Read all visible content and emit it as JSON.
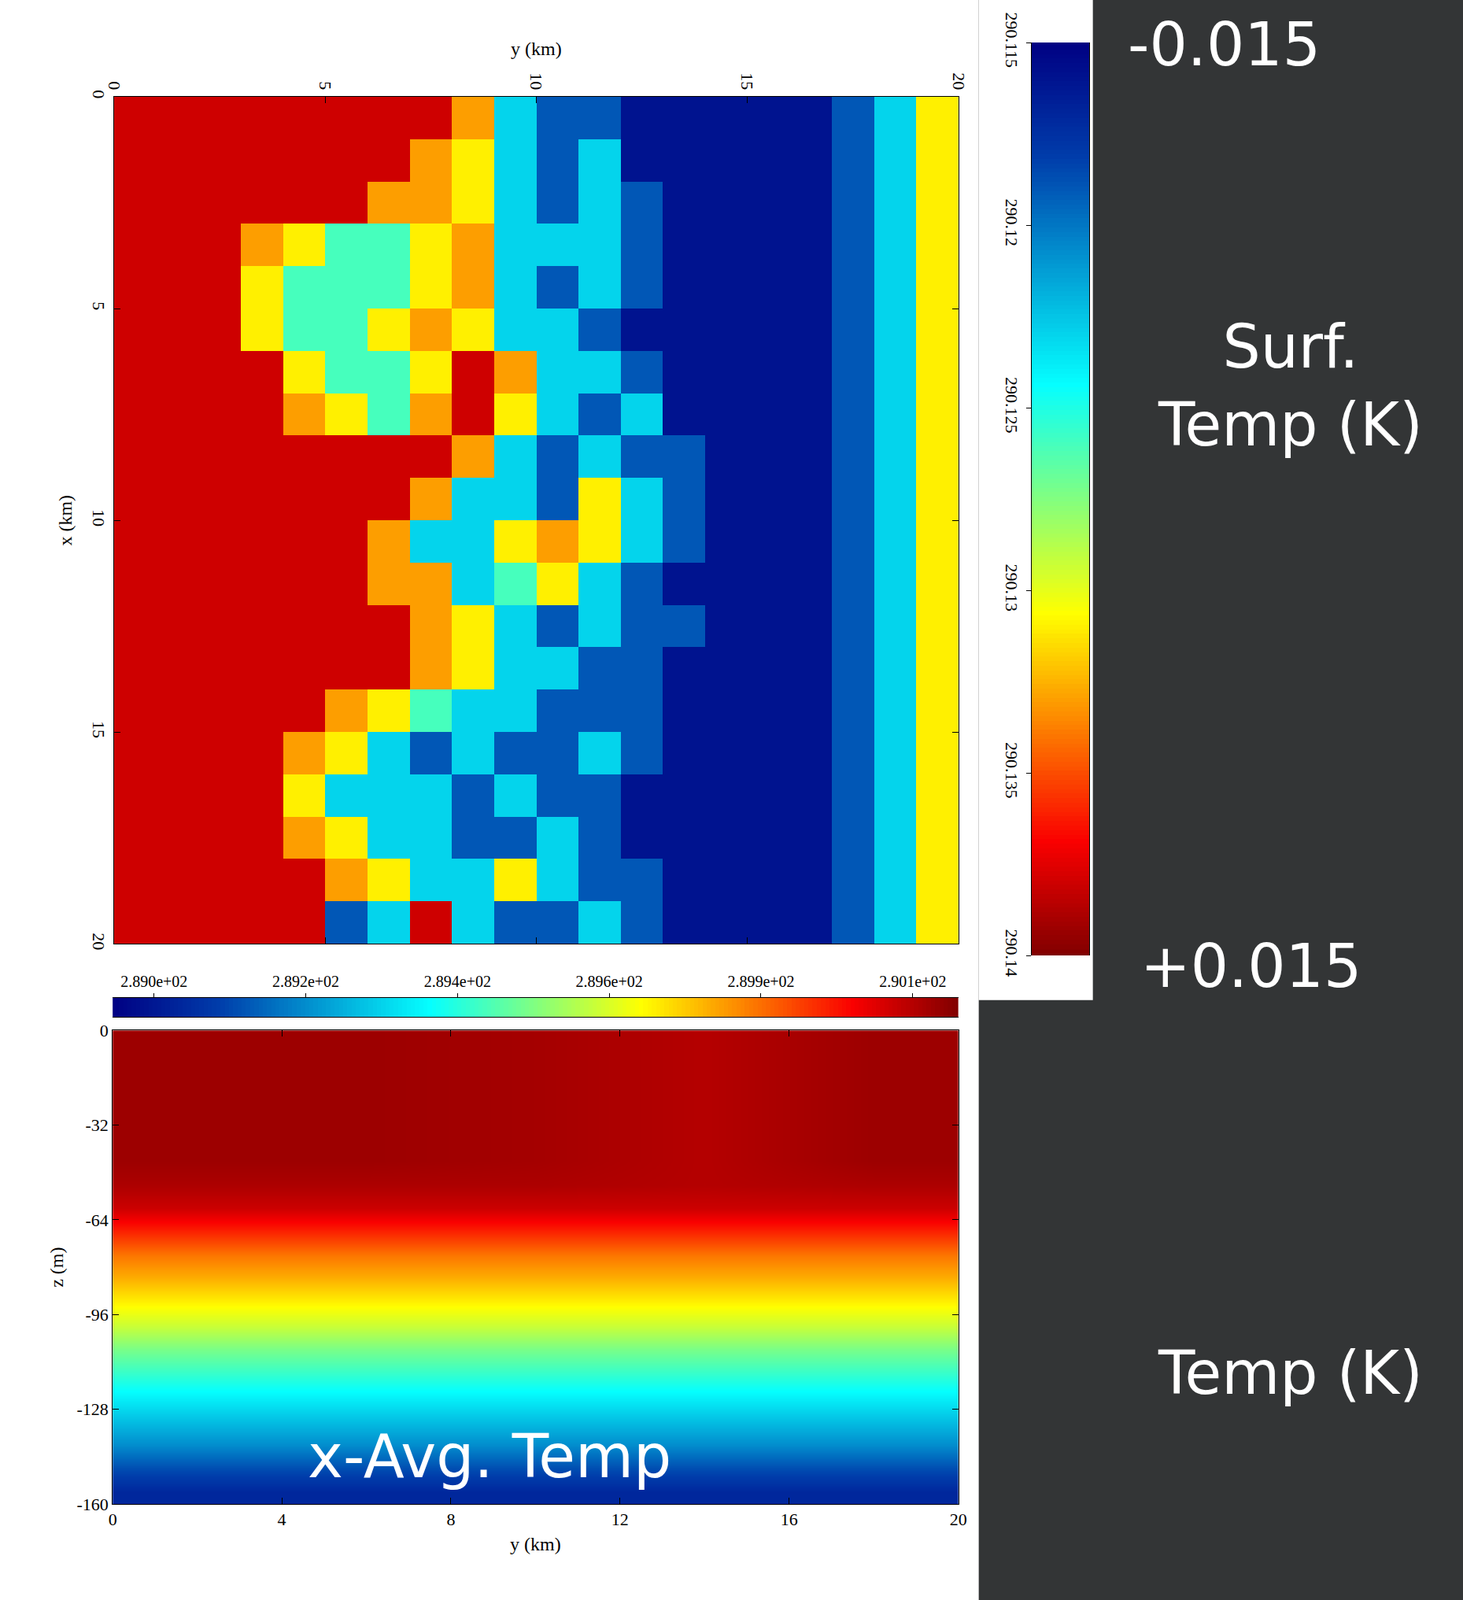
{
  "chart_data": [
    {
      "type": "heatmap",
      "x_label": "y (km)",
      "y_label": "x (km)",
      "xlim": [
        0,
        20
      ],
      "xticks": [
        0,
        5,
        10,
        15,
        20
      ],
      "ylim": [
        0,
        20
      ],
      "yticks": [
        0,
        5,
        10,
        15,
        20
      ],
      "x": [
        0.5,
        1.5,
        2.5,
        3.5,
        4.5,
        5.5,
        6.5,
        7.5,
        8.5,
        9.5,
        10.5,
        11.5,
        12.5,
        13.5,
        14.5,
        15.5,
        16.5,
        17.5,
        18.5,
        19.5
      ],
      "y": [
        0.5,
        1.5,
        2.5,
        3.5,
        4.5,
        5.5,
        6.5,
        7.5,
        8.5,
        9.5,
        10.5,
        11.5,
        12.5,
        13.5,
        14.5,
        15.5,
        16.5,
        17.5,
        18.5,
        19.5
      ],
      "values": [
        [
          290.138,
          290.138,
          290.138,
          290.138,
          290.138,
          290.138,
          290.138,
          290.138,
          290.133,
          290.123,
          290.119,
          290.119,
          290.116,
          290.116,
          290.116,
          290.116,
          290.116,
          290.119,
          290.123,
          290.131
        ],
        [
          290.138,
          290.138,
          290.138,
          290.138,
          290.138,
          290.138,
          290.138,
          290.133,
          290.131,
          290.123,
          290.119,
          290.123,
          290.116,
          290.116,
          290.116,
          290.116,
          290.116,
          290.119,
          290.123,
          290.131
        ],
        [
          290.138,
          290.138,
          290.138,
          290.138,
          290.138,
          290.138,
          290.133,
          290.133,
          290.131,
          290.123,
          290.119,
          290.123,
          290.119,
          290.116,
          290.116,
          290.116,
          290.116,
          290.119,
          290.123,
          290.131
        ],
        [
          290.138,
          290.138,
          290.138,
          290.133,
          290.131,
          290.126,
          290.126,
          290.131,
          290.133,
          290.123,
          290.123,
          290.123,
          290.119,
          290.116,
          290.116,
          290.116,
          290.116,
          290.119,
          290.123,
          290.131
        ],
        [
          290.138,
          290.138,
          290.138,
          290.131,
          290.126,
          290.126,
          290.126,
          290.131,
          290.133,
          290.123,
          290.119,
          290.123,
          290.119,
          290.116,
          290.116,
          290.116,
          290.116,
          290.119,
          290.123,
          290.131
        ],
        [
          290.138,
          290.138,
          290.138,
          290.131,
          290.126,
          290.126,
          290.131,
          290.133,
          290.131,
          290.123,
          290.123,
          290.119,
          290.116,
          290.116,
          290.116,
          290.116,
          290.116,
          290.119,
          290.123,
          290.131
        ],
        [
          290.138,
          290.138,
          290.138,
          290.138,
          290.131,
          290.126,
          290.126,
          290.131,
          290.138,
          290.133,
          290.123,
          290.123,
          290.119,
          290.116,
          290.116,
          290.116,
          290.116,
          290.119,
          290.123,
          290.131
        ],
        [
          290.138,
          290.138,
          290.138,
          290.138,
          290.133,
          290.131,
          290.126,
          290.133,
          290.138,
          290.131,
          290.123,
          290.119,
          290.123,
          290.116,
          290.116,
          290.116,
          290.116,
          290.119,
          290.123,
          290.131
        ],
        [
          290.138,
          290.138,
          290.138,
          290.138,
          290.138,
          290.138,
          290.138,
          290.138,
          290.133,
          290.123,
          290.119,
          290.123,
          290.119,
          290.119,
          290.116,
          290.116,
          290.116,
          290.119,
          290.123,
          290.131
        ],
        [
          290.138,
          290.138,
          290.138,
          290.138,
          290.138,
          290.138,
          290.138,
          290.133,
          290.123,
          290.123,
          290.119,
          290.131,
          290.123,
          290.119,
          290.116,
          290.116,
          290.116,
          290.119,
          290.123,
          290.131
        ],
        [
          290.138,
          290.138,
          290.138,
          290.138,
          290.138,
          290.138,
          290.133,
          290.123,
          290.123,
          290.131,
          290.133,
          290.131,
          290.123,
          290.119,
          290.116,
          290.116,
          290.116,
          290.119,
          290.123,
          290.131
        ],
        [
          290.138,
          290.138,
          290.138,
          290.138,
          290.138,
          290.138,
          290.133,
          290.133,
          290.123,
          290.126,
          290.131,
          290.123,
          290.119,
          290.116,
          290.116,
          290.116,
          290.116,
          290.119,
          290.123,
          290.131
        ],
        [
          290.138,
          290.138,
          290.138,
          290.138,
          290.138,
          290.138,
          290.138,
          290.133,
          290.131,
          290.123,
          290.119,
          290.123,
          290.119,
          290.119,
          290.116,
          290.116,
          290.116,
          290.119,
          290.123,
          290.131
        ],
        [
          290.138,
          290.138,
          290.138,
          290.138,
          290.138,
          290.138,
          290.138,
          290.133,
          290.131,
          290.123,
          290.123,
          290.119,
          290.119,
          290.116,
          290.116,
          290.116,
          290.116,
          290.119,
          290.123,
          290.131
        ],
        [
          290.138,
          290.138,
          290.138,
          290.138,
          290.138,
          290.133,
          290.131,
          290.126,
          290.123,
          290.123,
          290.119,
          290.119,
          290.119,
          290.116,
          290.116,
          290.116,
          290.116,
          290.119,
          290.123,
          290.131
        ],
        [
          290.138,
          290.138,
          290.138,
          290.138,
          290.133,
          290.131,
          290.123,
          290.119,
          290.123,
          290.119,
          290.119,
          290.123,
          290.119,
          290.116,
          290.116,
          290.116,
          290.116,
          290.119,
          290.123,
          290.131
        ],
        [
          290.138,
          290.138,
          290.138,
          290.138,
          290.131,
          290.123,
          290.123,
          290.123,
          290.119,
          290.123,
          290.119,
          290.119,
          290.116,
          290.116,
          290.116,
          290.116,
          290.116,
          290.119,
          290.123,
          290.131
        ],
        [
          290.138,
          290.138,
          290.138,
          290.138,
          290.133,
          290.131,
          290.123,
          290.123,
          290.119,
          290.119,
          290.123,
          290.119,
          290.116,
          290.116,
          290.116,
          290.116,
          290.116,
          290.119,
          290.123,
          290.131
        ],
        [
          290.138,
          290.138,
          290.138,
          290.138,
          290.138,
          290.133,
          290.131,
          290.123,
          290.123,
          290.131,
          290.123,
          290.119,
          290.119,
          290.116,
          290.116,
          290.116,
          290.116,
          290.119,
          290.123,
          290.131
        ],
        [
          290.138,
          290.138,
          290.138,
          290.138,
          290.138,
          290.119,
          290.123,
          290.138,
          290.123,
          290.119,
          290.119,
          290.123,
          290.119,
          290.116,
          290.116,
          290.116,
          290.116,
          290.119,
          290.123,
          290.131
        ]
      ],
      "colorbar": {
        "range": [
          290.115,
          290.14
        ],
        "ticks": [
          290.115,
          290.12,
          290.125,
          290.13,
          290.135,
          290.14
        ],
        "end_labels": [
          "-0.015",
          "+0.015"
        ],
        "title": [
          "Surf.",
          "Temp (K)"
        ]
      }
    },
    {
      "type": "heatmap",
      "x_label": "y (km)",
      "y_label": "z (m)",
      "xlim": [
        0,
        20
      ],
      "xticks": [
        0,
        4,
        8,
        12,
        16,
        20
      ],
      "ylim": [
        -160,
        0
      ],
      "yticks": [
        0,
        -32,
        -64,
        -96,
        -128,
        -160
      ],
      "x": [
        2,
        6,
        10,
        14,
        18
      ],
      "y": [
        -4,
        -12,
        -20,
        -28,
        -36,
        -44,
        -52,
        -60,
        -68,
        -76,
        -84,
        -92,
        -100,
        -108,
        -116,
        -124,
        -132,
        -140,
        -148,
        -156
      ],
      "values": [
        [
          290.11,
          290.11,
          290.1,
          290.08,
          290.11
        ],
        [
          290.11,
          290.11,
          290.1,
          290.08,
          290.11
        ],
        [
          290.11,
          290.11,
          290.1,
          290.08,
          290.11
        ],
        [
          290.11,
          290.11,
          290.1,
          290.08,
          290.11
        ],
        [
          290.11,
          290.11,
          290.1,
          290.08,
          290.11
        ],
        [
          290.11,
          290.11,
          290.1,
          290.08,
          290.11
        ],
        [
          290.09,
          290.09,
          290.09,
          290.08,
          290.09
        ],
        [
          290.05,
          290.05,
          290.05,
          290.05,
          290.05
        ],
        [
          289.95,
          289.95,
          289.95,
          289.95,
          289.95
        ],
        [
          289.85,
          289.85,
          289.85,
          289.85,
          289.85
        ],
        [
          289.78,
          289.78,
          289.78,
          289.78,
          289.78
        ],
        [
          289.7,
          289.7,
          289.7,
          289.7,
          289.7
        ],
        [
          289.62,
          289.62,
          289.62,
          289.62,
          289.62
        ],
        [
          289.52,
          289.52,
          289.52,
          289.52,
          289.52
        ],
        [
          289.44,
          289.44,
          289.44,
          289.44,
          289.44
        ],
        [
          289.36,
          289.36,
          289.36,
          289.36,
          289.36
        ],
        [
          289.28,
          289.28,
          289.28,
          289.28,
          289.28
        ],
        [
          289.2,
          289.2,
          289.2,
          289.2,
          289.2
        ],
        [
          289.1,
          289.1,
          289.1,
          289.1,
          289.1
        ],
        [
          289.02,
          289.02,
          289.02,
          289.02,
          289.02
        ]
      ],
      "colorbar": {
        "range": [
          288.92,
          290.146
        ],
        "ticks": [
          {
            "value": 288.98,
            "label": "2.890e+02"
          },
          {
            "value": 289.2,
            "label": "2.892e+02"
          },
          {
            "value": 289.42,
            "label": "2.894e+02"
          },
          {
            "value": 289.64,
            "label": "2.896e+02"
          },
          {
            "value": 289.86,
            "label": "2.899e+02"
          },
          {
            "value": 290.08,
            "label": "2.901e+02"
          }
        ],
        "title": "Temp (K)"
      },
      "annotations": [
        "x-Avg. Temp"
      ]
    }
  ]
}
